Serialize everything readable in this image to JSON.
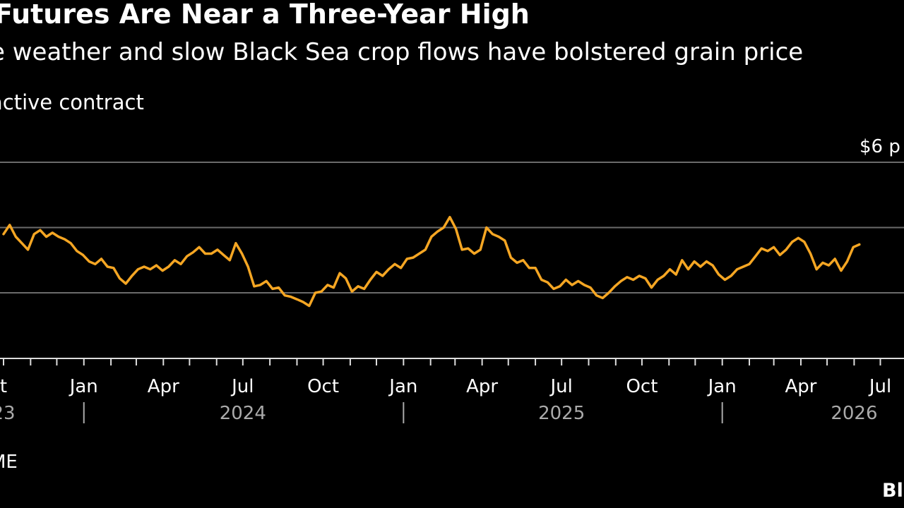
{
  "header": {
    "title": "Futures Are Near a Three-Year High",
    "subtitle": "e weather and slow Black Sea crop flows have bolstered grain price",
    "unit_note": "active contract"
  },
  "footer": {
    "source": "ME",
    "brand": "Bl"
  },
  "colors": {
    "background": "#000000",
    "line": "#f5a623",
    "grid": "#6b6b6b"
  },
  "chart_data": {
    "type": "line",
    "title": "Futures Are Near a Three-Year High",
    "subtitle": "e weather and slow Black Sea crop flows have bolstered grain price",
    "ylabel": "active contract",
    "grid": true,
    "ylim": [
      4.1,
      6.25
    ],
    "xlim": [
      "2023-10-01",
      "2026-07-20"
    ],
    "gridlines": [
      {
        "value": 6,
        "label": "$6 p"
      },
      {
        "value": 5.5,
        "label": ""
      },
      {
        "value": 5,
        "label": ""
      }
    ],
    "month_ticks": [
      {
        "date": "2023-10-01",
        "label": "t"
      },
      {
        "date": "2024-01-01",
        "label": "Jan"
      },
      {
        "date": "2024-04-01",
        "label": "Apr"
      },
      {
        "date": "2024-07-01",
        "label": "Jul"
      },
      {
        "date": "2024-10-01",
        "label": "Oct"
      },
      {
        "date": "2025-01-01",
        "label": "Jan"
      },
      {
        "date": "2025-04-01",
        "label": "Apr"
      },
      {
        "date": "2025-07-01",
        "label": "Jul"
      },
      {
        "date": "2025-10-01",
        "label": "Oct"
      },
      {
        "date": "2026-01-01",
        "label": "Jan"
      },
      {
        "date": "2026-04-01",
        "label": "Apr"
      },
      {
        "date": "2026-07-01",
        "label": "Jul"
      }
    ],
    "year_labels": [
      {
        "date": "2023-10-01",
        "label": "23"
      },
      {
        "date": "2024-07-01",
        "label": "2024"
      },
      {
        "date": "2025-07-01",
        "label": "2025"
      },
      {
        "date": "2026-06-01",
        "label": "2026"
      }
    ],
    "year_separators": [
      "2024-01-01",
      "2025-01-01",
      "2026-01-01"
    ],
    "series": [
      {
        "points": [
          [
            "2023-10-01",
            5.45
          ],
          [
            "2023-10-08",
            5.52
          ],
          [
            "2023-10-15",
            5.43
          ],
          [
            "2023-10-22",
            5.38
          ],
          [
            "2023-10-29",
            5.33
          ],
          [
            "2023-11-05",
            5.45
          ],
          [
            "2023-11-12",
            5.48
          ],
          [
            "2023-11-19",
            5.43
          ],
          [
            "2023-11-26",
            5.46
          ],
          [
            "2023-12-03",
            5.43
          ],
          [
            "2023-12-10",
            5.41
          ],
          [
            "2023-12-17",
            5.38
          ],
          [
            "2023-12-24",
            5.32
          ],
          [
            "2023-12-31",
            5.29
          ],
          [
            "2024-01-07",
            5.24
          ],
          [
            "2024-01-14",
            5.22
          ],
          [
            "2024-01-21",
            5.26
          ],
          [
            "2024-01-28",
            5.2
          ],
          [
            "2024-02-04",
            5.19
          ],
          [
            "2024-02-11",
            5.11
          ],
          [
            "2024-02-18",
            5.07
          ],
          [
            "2024-02-25",
            5.13
          ],
          [
            "2024-03-03",
            5.18
          ],
          [
            "2024-03-10",
            5.2
          ],
          [
            "2024-03-17",
            5.18
          ],
          [
            "2024-03-24",
            5.21
          ],
          [
            "2024-03-31",
            5.17
          ],
          [
            "2024-04-07",
            5.2
          ],
          [
            "2024-04-14",
            5.25
          ],
          [
            "2024-04-21",
            5.22
          ],
          [
            "2024-04-28",
            5.28
          ],
          [
            "2024-05-05",
            5.31
          ],
          [
            "2024-05-12",
            5.35
          ],
          [
            "2024-05-19",
            5.3
          ],
          [
            "2024-05-26",
            5.3
          ],
          [
            "2024-06-02",
            5.33
          ],
          [
            "2024-06-09",
            5.29
          ],
          [
            "2024-06-16",
            5.25
          ],
          [
            "2024-06-23",
            5.38
          ],
          [
            "2024-06-30",
            5.3
          ],
          [
            "2024-07-07",
            5.2
          ],
          [
            "2024-07-14",
            5.05
          ],
          [
            "2024-07-21",
            5.06
          ],
          [
            "2024-07-28",
            5.09
          ],
          [
            "2024-08-04",
            5.03
          ],
          [
            "2024-08-11",
            5.04
          ],
          [
            "2024-08-18",
            4.98
          ],
          [
            "2024-08-25",
            4.97
          ],
          [
            "2024-09-01",
            4.95
          ],
          [
            "2024-09-08",
            4.93
          ],
          [
            "2024-09-15",
            4.9
          ],
          [
            "2024-09-22",
            5.0
          ],
          [
            "2024-09-29",
            5.01
          ],
          [
            "2024-10-06",
            5.06
          ],
          [
            "2024-10-13",
            5.04
          ],
          [
            "2024-10-20",
            5.15
          ],
          [
            "2024-10-27",
            5.11
          ],
          [
            "2024-11-03",
            5.01
          ],
          [
            "2024-11-10",
            5.05
          ],
          [
            "2024-11-17",
            5.03
          ],
          [
            "2024-11-24",
            5.1
          ],
          [
            "2024-12-01",
            5.16
          ],
          [
            "2024-12-08",
            5.13
          ],
          [
            "2024-12-15",
            5.18
          ],
          [
            "2024-12-22",
            5.22
          ],
          [
            "2024-12-29",
            5.19
          ],
          [
            "2025-01-05",
            5.26
          ],
          [
            "2025-01-12",
            5.27
          ],
          [
            "2025-01-19",
            5.3
          ],
          [
            "2025-01-26",
            5.33
          ],
          [
            "2025-02-02",
            5.43
          ],
          [
            "2025-02-09",
            5.47
          ],
          [
            "2025-02-16",
            5.5
          ],
          [
            "2025-02-23",
            5.58
          ],
          [
            "2025-03-02",
            5.49
          ],
          [
            "2025-03-09",
            5.33
          ],
          [
            "2025-03-16",
            5.34
          ],
          [
            "2025-03-23",
            5.3
          ],
          [
            "2025-03-30",
            5.33
          ],
          [
            "2025-04-06",
            5.5
          ],
          [
            "2025-04-13",
            5.45
          ],
          [
            "2025-04-20",
            5.43
          ],
          [
            "2025-04-27",
            5.4
          ],
          [
            "2025-05-04",
            5.27
          ],
          [
            "2025-05-11",
            5.23
          ],
          [
            "2025-05-18",
            5.25
          ],
          [
            "2025-05-25",
            5.19
          ],
          [
            "2025-06-01",
            5.19
          ],
          [
            "2025-06-08",
            5.1
          ],
          [
            "2025-06-15",
            5.08
          ],
          [
            "2025-06-22",
            5.03
          ],
          [
            "2025-06-29",
            5.05
          ],
          [
            "2025-07-06",
            5.1
          ],
          [
            "2025-07-13",
            5.06
          ],
          [
            "2025-07-20",
            5.09
          ],
          [
            "2025-07-27",
            5.06
          ],
          [
            "2025-08-03",
            5.04
          ],
          [
            "2025-08-10",
            4.98
          ],
          [
            "2025-08-17",
            4.96
          ],
          [
            "2025-08-24",
            5.0
          ],
          [
            "2025-08-31",
            5.05
          ],
          [
            "2025-09-07",
            5.09
          ],
          [
            "2025-09-14",
            5.12
          ],
          [
            "2025-09-21",
            5.1
          ],
          [
            "2025-09-28",
            5.13
          ],
          [
            "2025-10-05",
            5.11
          ],
          [
            "2025-10-12",
            5.04
          ],
          [
            "2025-10-19",
            5.1
          ],
          [
            "2025-10-26",
            5.13
          ],
          [
            "2025-11-02",
            5.18
          ],
          [
            "2025-11-09",
            5.14
          ],
          [
            "2025-11-16",
            5.25
          ],
          [
            "2025-11-23",
            5.18
          ],
          [
            "2025-11-30",
            5.24
          ],
          [
            "2025-12-07",
            5.2
          ],
          [
            "2025-12-14",
            5.24
          ],
          [
            "2025-12-21",
            5.21
          ],
          [
            "2025-12-28",
            5.14
          ],
          [
            "2026-01-04",
            5.1
          ],
          [
            "2026-01-11",
            5.13
          ],
          [
            "2026-01-18",
            5.18
          ],
          [
            "2026-01-25",
            5.2
          ],
          [
            "2026-02-01",
            5.22
          ],
          [
            "2026-02-08",
            5.28
          ],
          [
            "2026-02-15",
            5.34
          ],
          [
            "2026-02-22",
            5.32
          ],
          [
            "2026-03-01",
            5.35
          ],
          [
            "2026-03-08",
            5.29
          ],
          [
            "2026-03-15",
            5.33
          ],
          [
            "2026-03-22",
            5.39
          ],
          [
            "2026-03-29",
            5.42
          ],
          [
            "2026-04-05",
            5.39
          ],
          [
            "2026-04-12",
            5.3
          ],
          [
            "2026-04-19",
            5.18
          ],
          [
            "2026-04-26",
            5.23
          ],
          [
            "2026-05-03",
            5.21
          ],
          [
            "2026-05-10",
            5.26
          ],
          [
            "2026-05-17",
            5.17
          ],
          [
            "2026-05-24",
            5.24
          ],
          [
            "2026-05-31",
            5.35
          ],
          [
            "2026-06-07",
            5.37
          ]
        ]
      }
    ]
  }
}
